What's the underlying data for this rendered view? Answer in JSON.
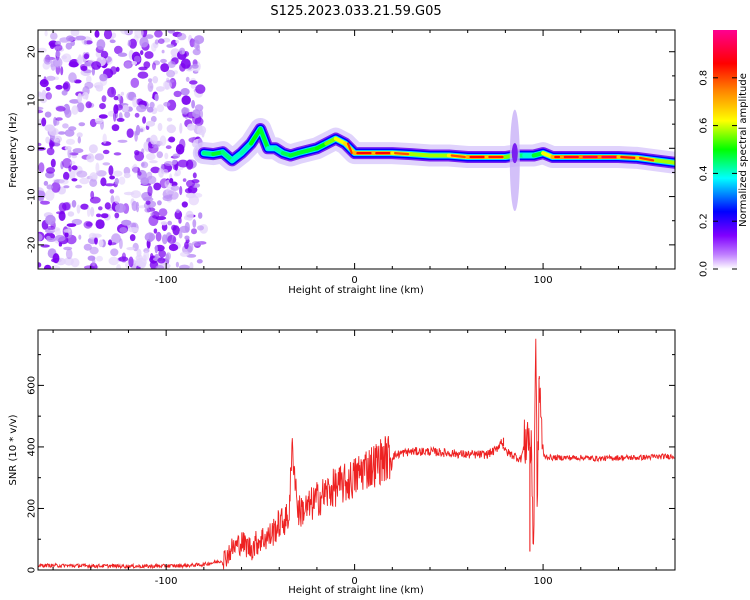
{
  "title": "S125.2023.033.21.59.G05",
  "chart_data": [
    {
      "type": "heatmap",
      "xlabel": "Height of straight line (km)",
      "ylabel": "Frequency (Hz)",
      "xlim": [
        -168,
        170
      ],
      "ylim": [
        -25,
        24.5
      ],
      "xticks": [
        -100,
        0,
        100
      ],
      "yticks": [
        -20,
        -10,
        0,
        10,
        20
      ],
      "grid": false,
      "colorbar": {
        "label": "Normalized spectral amplitude",
        "range": [
          0,
          1
        ],
        "ticks": [
          0.0,
          0.2,
          0.4,
          0.6,
          0.8
        ],
        "colormap": [
          "#ffffff",
          "#9000ff",
          "#0000ff",
          "#00ffff",
          "#00ff00",
          "#ffff00",
          "#ff8000",
          "#ff0000",
          "#ff00a0"
        ]
      },
      "noise_region_x": [
        -168,
        -80
      ],
      "ridge": {
        "x": [
          -80,
          -75,
          -70,
          -65,
          -60,
          -55,
          -50,
          -46,
          -42,
          -38,
          -34,
          -30,
          -25,
          -20,
          -15,
          -10,
          -5,
          0,
          10,
          20,
          30,
          40,
          50,
          60,
          70,
          80,
          85,
          90,
          95,
          100,
          105,
          110,
          120,
          130,
          140,
          150,
          160,
          170
        ],
        "y": [
          -1,
          -1.2,
          -0.8,
          -2.5,
          -1,
          1,
          4,
          0,
          0,
          -1,
          -1.5,
          -1,
          -0.5,
          0,
          1,
          2,
          1,
          -1,
          -1,
          -1,
          -1.2,
          -1.5,
          -1.5,
          -1.8,
          -1.8,
          -1.8,
          -1.5,
          -1.5,
          -1.5,
          -1,
          -1.8,
          -1.8,
          -1.8,
          -1.8,
          -1.8,
          -2,
          -2.5,
          -3
        ],
        "amplitude": [
          0.5,
          0.6,
          0.6,
          0.5,
          0.5,
          0.55,
          0.7,
          0.5,
          0.5,
          0.55,
          0.6,
          0.6,
          0.6,
          0.6,
          0.65,
          0.75,
          0.8,
          0.85,
          0.9,
          0.85,
          0.75,
          0.7,
          0.75,
          0.85,
          0.9,
          0.8,
          0.6,
          0.5,
          0.5,
          0.7,
          0.85,
          0.9,
          0.9,
          0.95,
          0.9,
          0.8,
          0.85,
          0.6
        ]
      },
      "spur": {
        "x": 85,
        "y_range": [
          -13,
          8
        ]
      }
    },
    {
      "type": "line",
      "xlabel": "Height of straight line (km)",
      "ylabel": "SNR (10 * v/v)",
      "xlim": [
        -168,
        170
      ],
      "ylim": [
        0,
        780
      ],
      "xticks": [
        -100,
        0,
        100
      ],
      "yticks": [
        0,
        200,
        400,
        600
      ],
      "grid": false,
      "color": "#ee2222",
      "series": [
        {
          "x": [
            -168,
            -150,
            -130,
            -110,
            -90,
            -80,
            -70,
            -65,
            -60,
            -55,
            -50,
            -45,
            -40,
            -35,
            -33,
            -30,
            -25,
            -20,
            -15,
            -10,
            -5,
            0,
            5,
            10,
            15,
            20,
            25,
            30,
            40,
            50,
            60,
            70,
            75,
            78,
            80,
            85,
            88,
            90,
            92,
            94,
            95,
            96,
            97,
            98,
            100,
            105,
            110,
            120,
            130,
            140,
            150,
            160,
            170
          ],
          "y": [
            15,
            14,
            13,
            12,
            14,
            18,
            30,
            70,
            90,
            70,
            100,
            110,
            150,
            170,
            400,
            190,
            200,
            230,
            250,
            270,
            280,
            300,
            330,
            340,
            360,
            370,
            380,
            385,
            385,
            380,
            375,
            375,
            390,
            420,
            385,
            370,
            360,
            400,
            450,
            350,
            60,
            780,
            200,
            620,
            370,
            365,
            365,
            365,
            362,
            365,
            365,
            368,
            370
          ]
        }
      ],
      "spikes": [
        {
          "x": -33,
          "y": 415
        },
        {
          "x": 79,
          "y": 430
        },
        {
          "x": 93,
          "y": 60
        },
        {
          "x": 96,
          "y": 780
        },
        {
          "x": 98,
          "y": 630
        }
      ]
    }
  ]
}
